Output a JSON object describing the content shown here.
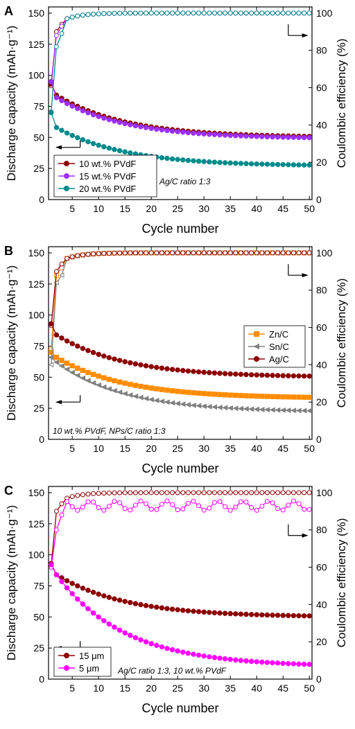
{
  "figure": {
    "y_left_label": "Discharge capacity (mAh·g⁻¹)",
    "y_right_label": "Coulombic efficiency (%)",
    "x_label": "Cycle number"
  },
  "chart_data": [
    {
      "panel": "A",
      "type": "line",
      "xlabel": "Cycle number",
      "ylabel": "Discharge capacity (mAh·g⁻¹)",
      "y2label": "Coulombic efficiency (%)",
      "xlim": [
        0.5,
        50.5
      ],
      "ylim": [
        0,
        155
      ],
      "y2lim": [
        0,
        103.3
      ],
      "xticks": [
        5,
        10,
        15,
        20,
        25,
        30,
        35,
        40,
        45,
        50
      ],
      "yticks": [
        0,
        25,
        50,
        75,
        100,
        125,
        150
      ],
      "y2ticks": [
        0,
        20,
        40,
        60,
        80,
        100
      ],
      "annotation": "Ag/C ratio 1:3",
      "legend_position": "bottom-left",
      "series": [
        {
          "name": "10 wt.% PVdF",
          "color": "#8B0000",
          "marker": "circle",
          "capacity": {
            "start": 93,
            "a": 84,
            "end": 50
          },
          "efficiency": {
            "c1": 61,
            "c2": 90,
            "c3": 94
          }
        },
        {
          "name": "15 wt.% PVdF",
          "color": "#9B30FF",
          "marker": "circle",
          "capacity": {
            "start": 95,
            "a": 82,
            "end": 49
          },
          "efficiency": {
            "c1": 63,
            "c2": 88,
            "c3": 93
          }
        },
        {
          "name": "20 wt.% PVdF",
          "color": "#008B8B",
          "marker": "circle",
          "capacity": {
            "start": 70,
            "a": 58,
            "end": 27
          },
          "efficiency": {
            "c1": 47,
            "c2": 82,
            "c3": 89
          }
        }
      ],
      "arrows": {
        "capacity": "left",
        "efficiency": "right"
      }
    },
    {
      "panel": "B",
      "type": "line",
      "xlabel": "Cycle number",
      "ylabel": "Discharge capacity (mAh·g⁻¹)",
      "y2label": "Coulombic efficiency (%)",
      "xlim": [
        0.5,
        50.5
      ],
      "ylim": [
        0,
        155
      ],
      "y2lim": [
        0,
        103.3
      ],
      "xticks": [
        5,
        10,
        15,
        20,
        25,
        30,
        35,
        40,
        45,
        50
      ],
      "yticks": [
        0,
        25,
        50,
        75,
        100,
        125,
        150
      ],
      "y2ticks": [
        0,
        20,
        40,
        60,
        80,
        100
      ],
      "annotation": "10 wt.% PVdF, NPs/C ratio 1:3",
      "legend_position": "right",
      "series": [
        {
          "name": "Zn/C",
          "color": "#FF8C00",
          "marker": "square",
          "capacity": {
            "start": 70,
            "a": 66,
            "end": 33
          },
          "efficiency": {
            "c1": 48,
            "c2": 88,
            "c3": 92
          }
        },
        {
          "name": "Sn/C",
          "color": "#808080",
          "marker": "triangle",
          "capacity": {
            "start": 66,
            "a": 62,
            "end": 22
          },
          "efficiency": {
            "c1": 40,
            "c2": 84,
            "c3": 88
          }
        },
        {
          "name": "Ag/C",
          "color": "#8B0000",
          "marker": "circle",
          "capacity": {
            "start": 93,
            "a": 84,
            "end": 50
          },
          "efficiency": {
            "c1": 61,
            "c2": 90,
            "c3": 94
          }
        }
      ],
      "arrows": {
        "capacity": "left",
        "efficiency": "right"
      }
    },
    {
      "panel": "C",
      "type": "line",
      "xlabel": "Cycle number",
      "ylabel": "Discharge capacity (mAh·g⁻¹)",
      "y2label": "Coulombic efficiency (%)",
      "xlim": [
        0.5,
        50.5
      ],
      "ylim": [
        0,
        155
      ],
      "y2lim": [
        0,
        103.3
      ],
      "xticks": [
        5,
        10,
        15,
        20,
        25,
        30,
        35,
        40,
        45,
        50
      ],
      "yticks": [
        0,
        25,
        50,
        75,
        100,
        125,
        150
      ],
      "y2ticks": [
        0,
        20,
        40,
        60,
        80,
        100
      ],
      "annotation": "Ag/C ratio 1:3, 10 wt.% PVdF",
      "legend_position": "bottom-left",
      "series": [
        {
          "name": "15 μm",
          "color": "#8B0000",
          "marker": "circle",
          "capacity": {
            "start": 93,
            "a": 84,
            "end": 50
          },
          "efficiency": {
            "c1": 61,
            "c2": 90,
            "c3": 94
          }
        },
        {
          "name": "5 μm",
          "color": "#FF00FF",
          "marker": "circle",
          "capacity": {
            "start": 92,
            "a": 84,
            "end": 10
          },
          "efficiency": {
            "c1": 60,
            "c2": 80,
            "c3": 88
          }
        }
      ],
      "arrows": {
        "capacity": "left",
        "efficiency": "right"
      }
    }
  ]
}
